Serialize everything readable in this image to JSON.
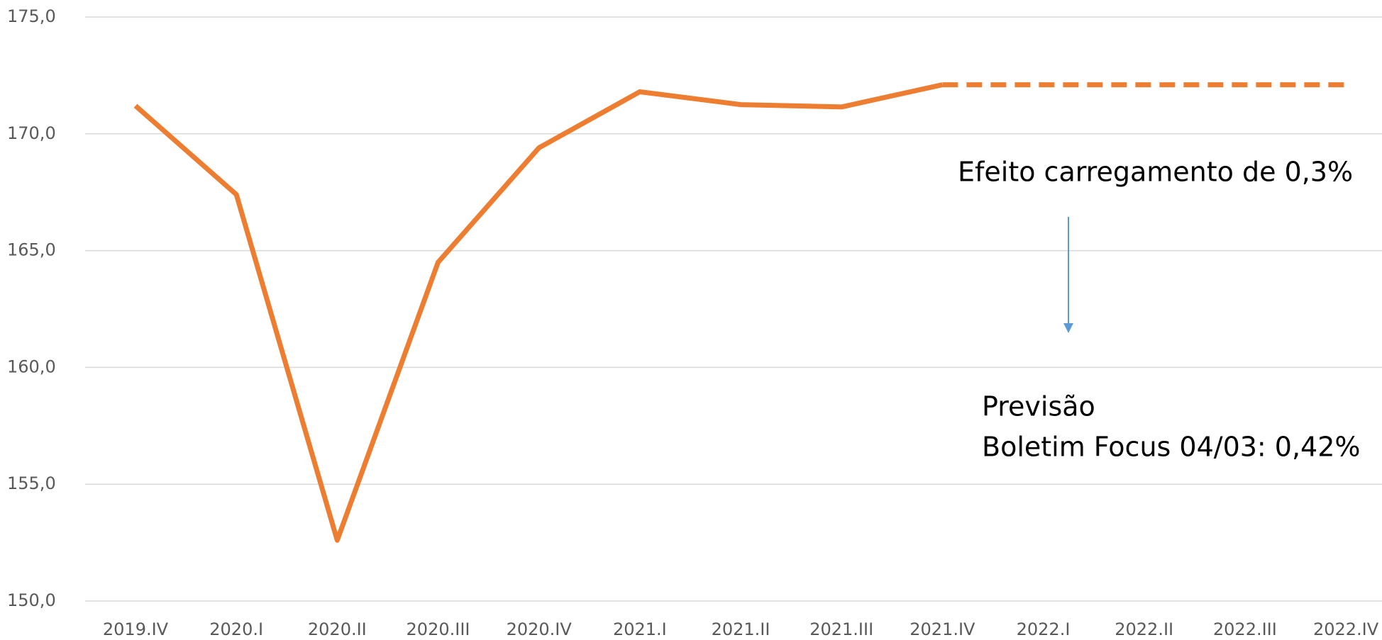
{
  "chart_data": {
    "type": "line",
    "categories": [
      "2019.IV",
      "2020.I",
      "2020.II",
      "2020.III",
      "2020.IV",
      "2021.I",
      "2021.II",
      "2021.III",
      "2021.IV",
      "2022.I",
      "2022.II",
      "2022.III",
      "2022.IV"
    ],
    "series": [
      {
        "color": "#ed7d31",
        "dashed": false,
        "values": [
          171.2,
          167.4,
          152.6,
          164.5,
          169.4,
          171.8,
          171.25,
          171.15,
          172.1,
          null,
          null,
          null,
          null
        ]
      },
      {
        "color": "#ed7d31",
        "dashed": true,
        "values": [
          null,
          null,
          null,
          null,
          null,
          null,
          null,
          null,
          172.1,
          172.1,
          172.1,
          172.1,
          172.1
        ]
      }
    ],
    "ylim": [
      150,
      175
    ],
    "yticks": [
      {
        "value": 150,
        "label": "150,0"
      },
      {
        "value": 155,
        "label": "155,0"
      },
      {
        "value": 160,
        "label": "160,0"
      },
      {
        "value": 165,
        "label": "165,0"
      },
      {
        "value": 170,
        "label": "170,0"
      },
      {
        "value": 175,
        "label": "175,0"
      }
    ],
    "grid": true,
    "annotations": [
      "Efeito carregamento de 0,3%",
      "Previsão",
      "Boletim Focus 04/03: 0,42%"
    ]
  }
}
